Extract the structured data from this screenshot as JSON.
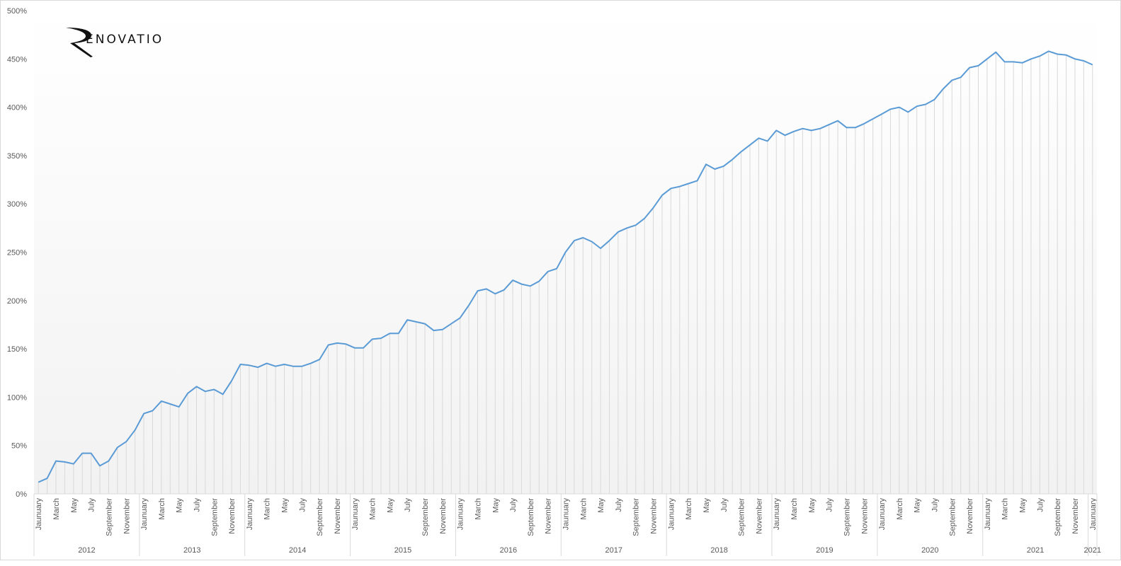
{
  "logo": {
    "text": "RENOVATIO"
  },
  "colors": {
    "line": "#5b9bd5",
    "droplines": "#d9d9d9",
    "axis_text": "#595959",
    "plot_bg_bottom": "#f2f2f2",
    "plot_bg_top": "#ffffff"
  },
  "chart_data": {
    "type": "line",
    "title": "",
    "xlabel": "",
    "ylabel": "",
    "x_interval": "monthly",
    "y_format": "percent",
    "ylim": [
      0,
      500
    ],
    "y_ticks": [
      "0%",
      "50%",
      "100%",
      "150%",
      "200%",
      "250%",
      "300%",
      "350%",
      "400%",
      "450%",
      "500%"
    ],
    "drop_lines": true,
    "grid": false,
    "legend": "none",
    "month_tick_labels": [
      "Jaunuary",
      "",
      "March",
      "",
      "May",
      "",
      "July",
      "",
      "September",
      "",
      "November",
      ""
    ],
    "year_groups": [
      {
        "label": "2012",
        "months": 12
      },
      {
        "label": "2013",
        "months": 12
      },
      {
        "label": "2014",
        "months": 12
      },
      {
        "label": "2015",
        "months": 12
      },
      {
        "label": "2016",
        "months": 12
      },
      {
        "label": "2017",
        "months": 12
      },
      {
        "label": "2018",
        "months": 12
      },
      {
        "label": "2019",
        "months": 12
      },
      {
        "label": "2020",
        "months": 12
      },
      {
        "label": "2021",
        "months": 12
      },
      {
        "label": "2021",
        "months": 1
      }
    ],
    "values": [
      12,
      16,
      34,
      33,
      31,
      42,
      42,
      29,
      34,
      48,
      54,
      66,
      83,
      86,
      96,
      93,
      90,
      104,
      111,
      106,
      108,
      103,
      117,
      134,
      133,
      131,
      135,
      132,
      134,
      132,
      132,
      135,
      139,
      154,
      156,
      155,
      151,
      151,
      160,
      161,
      166,
      166,
      180,
      178,
      176,
      169,
      170,
      176,
      182,
      195,
      210,
      212,
      207,
      211,
      221,
      217,
      215,
      220,
      230,
      233,
      250,
      262,
      265,
      261,
      254,
      262,
      271,
      275,
      278,
      285,
      296,
      309,
      316,
      318,
      321,
      324,
      341,
      336,
      339,
      346,
      354,
      361,
      368,
      365,
      376,
      371,
      375,
      378,
      376,
      378,
      382,
      386,
      379,
      379,
      383,
      388,
      393,
      398,
      400,
      395,
      401,
      403,
      408,
      419,
      428,
      431,
      441,
      443,
      450,
      457,
      447,
      447,
      446,
      450,
      453,
      458,
      455,
      454,
      450,
      448,
      444
    ]
  }
}
